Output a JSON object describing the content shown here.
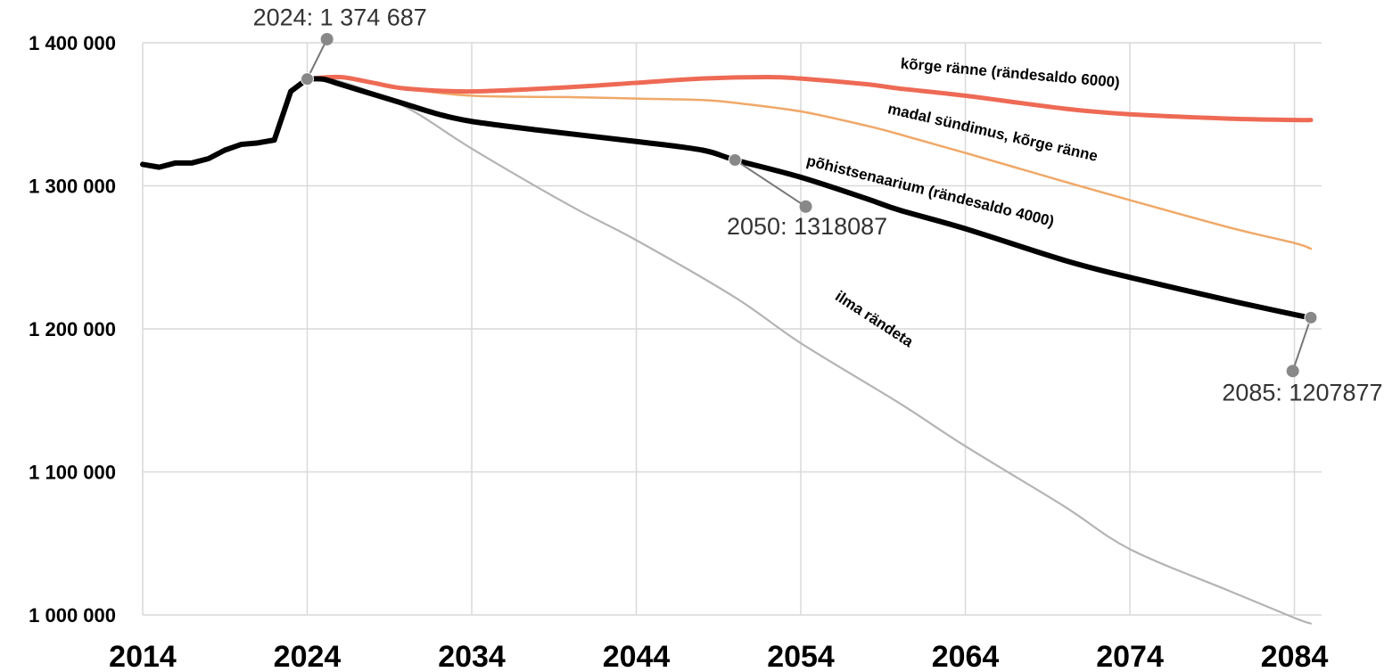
{
  "chart_data": {
    "type": "line",
    "x_range": [
      2014,
      2085
    ],
    "ylim": [
      1000000,
      1400000
    ],
    "grid": true,
    "y_ticks": [
      {
        "value": 1000000,
        "label": "1 000 000"
      },
      {
        "value": 1100000,
        "label": "1 100 000"
      },
      {
        "value": 1200000,
        "label": "1 200 000"
      },
      {
        "value": 1300000,
        "label": "1 300 000"
      },
      {
        "value": 1400000,
        "label": "1 400 000"
      }
    ],
    "x_ticks": [
      {
        "value": 2014,
        "label": "2014"
      },
      {
        "value": 2024,
        "label": "2024"
      },
      {
        "value": 2034,
        "label": "2034"
      },
      {
        "value": 2044,
        "label": "2044"
      },
      {
        "value": 2054,
        "label": "2054"
      },
      {
        "value": 2064,
        "label": "2064"
      },
      {
        "value": 2074,
        "label": "2074"
      },
      {
        "value": 2084,
        "label": "2084"
      }
    ],
    "series": [
      {
        "name": "ilma rändeta",
        "color": "#b4b4b4",
        "points": [
          [
            2024,
            1374687
          ],
          [
            2026,
            1373000
          ],
          [
            2030,
            1355000
          ],
          [
            2034,
            1326000
          ],
          [
            2040,
            1286000
          ],
          [
            2044,
            1262000
          ],
          [
            2050,
            1222000
          ],
          [
            2054,
            1190000
          ],
          [
            2060,
            1148000
          ],
          [
            2064,
            1118000
          ],
          [
            2070,
            1076000
          ],
          [
            2074,
            1046000
          ],
          [
            2080,
            1017000
          ],
          [
            2084,
            998000
          ],
          [
            2085,
            994000
          ]
        ]
      },
      {
        "name": "madal sündimus, kõrge ränne",
        "color": "#f0a868",
        "points": [
          [
            2024,
            1374687
          ],
          [
            2026,
            1376000
          ],
          [
            2028,
            1372000
          ],
          [
            2030,
            1368000
          ],
          [
            2034,
            1363000
          ],
          [
            2040,
            1362000
          ],
          [
            2044,
            1361000
          ],
          [
            2048,
            1360000
          ],
          [
            2050,
            1358000
          ],
          [
            2054,
            1352000
          ],
          [
            2058,
            1342000
          ],
          [
            2060,
            1336000
          ],
          [
            2064,
            1323000
          ],
          [
            2070,
            1303000
          ],
          [
            2074,
            1290000
          ],
          [
            2080,
            1271000
          ],
          [
            2084,
            1260000
          ],
          [
            2085,
            1256000
          ]
        ]
      },
      {
        "name": "kõrge ränne (rändesaldo 6000)",
        "color": "#ee6a55",
        "points": [
          [
            2024,
            1374687
          ],
          [
            2026,
            1376000
          ],
          [
            2028,
            1372000
          ],
          [
            2030,
            1368000
          ],
          [
            2034,
            1366000
          ],
          [
            2040,
            1369000
          ],
          [
            2044,
            1372000
          ],
          [
            2048,
            1375000
          ],
          [
            2052,
            1376000
          ],
          [
            2054,
            1375000
          ],
          [
            2058,
            1371000
          ],
          [
            2060,
            1368000
          ],
          [
            2064,
            1363000
          ],
          [
            2070,
            1354000
          ],
          [
            2074,
            1350000
          ],
          [
            2080,
            1347000
          ],
          [
            2084,
            1346000
          ],
          [
            2085,
            1346000
          ]
        ]
      },
      {
        "name": "põhistsenaarium (rändesaldo 4000)",
        "color": "#000000",
        "points": [
          [
            2014,
            1315000
          ],
          [
            2015,
            1313000
          ],
          [
            2016,
            1316000
          ],
          [
            2017,
            1316000
          ],
          [
            2018,
            1319000
          ],
          [
            2019,
            1325000
          ],
          [
            2020,
            1329000
          ],
          [
            2021,
            1330000
          ],
          [
            2022,
            1332000
          ],
          [
            2023,
            1366000
          ],
          [
            2024,
            1374687
          ],
          [
            2025,
            1374500
          ],
          [
            2026,
            1371000
          ],
          [
            2028,
            1364000
          ],
          [
            2030,
            1357000
          ],
          [
            2032,
            1350000
          ],
          [
            2034,
            1345000
          ],
          [
            2038,
            1339000
          ],
          [
            2044,
            1331000
          ],
          [
            2048,
            1325000
          ],
          [
            2050,
            1318087
          ],
          [
            2054,
            1306000
          ],
          [
            2058,
            1291000
          ],
          [
            2060,
            1283000
          ],
          [
            2064,
            1270000
          ],
          [
            2070,
            1248000
          ],
          [
            2074,
            1236000
          ],
          [
            2080,
            1220000
          ],
          [
            2084,
            1210000
          ],
          [
            2085,
            1207877
          ]
        ]
      }
    ],
    "series_labels": [
      {
        "series": 2,
        "text": "kõrge ränne (rändesaldo 6000)",
        "at_x": 2066.7,
        "at_y": 1375500,
        "angle": 5
      },
      {
        "series": 1,
        "text": "madal sündimus, kõrge ränne",
        "at_x": 2065.6,
        "at_y": 1334000,
        "angle": 13
      },
      {
        "series": 3,
        "text": "põhistsenaarium (rändesaldo 4000)",
        "at_x": 2061.8,
        "at_y": 1293000,
        "angle": 14
      },
      {
        "series": 0,
        "text": "ilma rändeta",
        "at_x": 2058.3,
        "at_y": 1204000,
        "angle": 33
      }
    ],
    "annotations": [
      {
        "text": "2024: 1 374 687",
        "point": [
          2024,
          1374687
        ],
        "label_point": [
          2025.2,
          1402500
        ],
        "text_x": 2020.7,
        "text_y": 1412000,
        "anchor": "start"
      },
      {
        "text": "2050: 1318087",
        "point": [
          2050,
          1318087
        ],
        "label_point": [
          2054.3,
          1285500
        ],
        "text_x": 2049.5,
        "text_y": 1266000,
        "anchor": "start"
      },
      {
        "text": "2085: 1207877",
        "point": [
          2085,
          1207877
        ],
        "label_point": [
          2083.9,
          1170500
        ],
        "text_x": 2079.6,
        "text_y": 1150000,
        "anchor": "start"
      }
    ]
  }
}
